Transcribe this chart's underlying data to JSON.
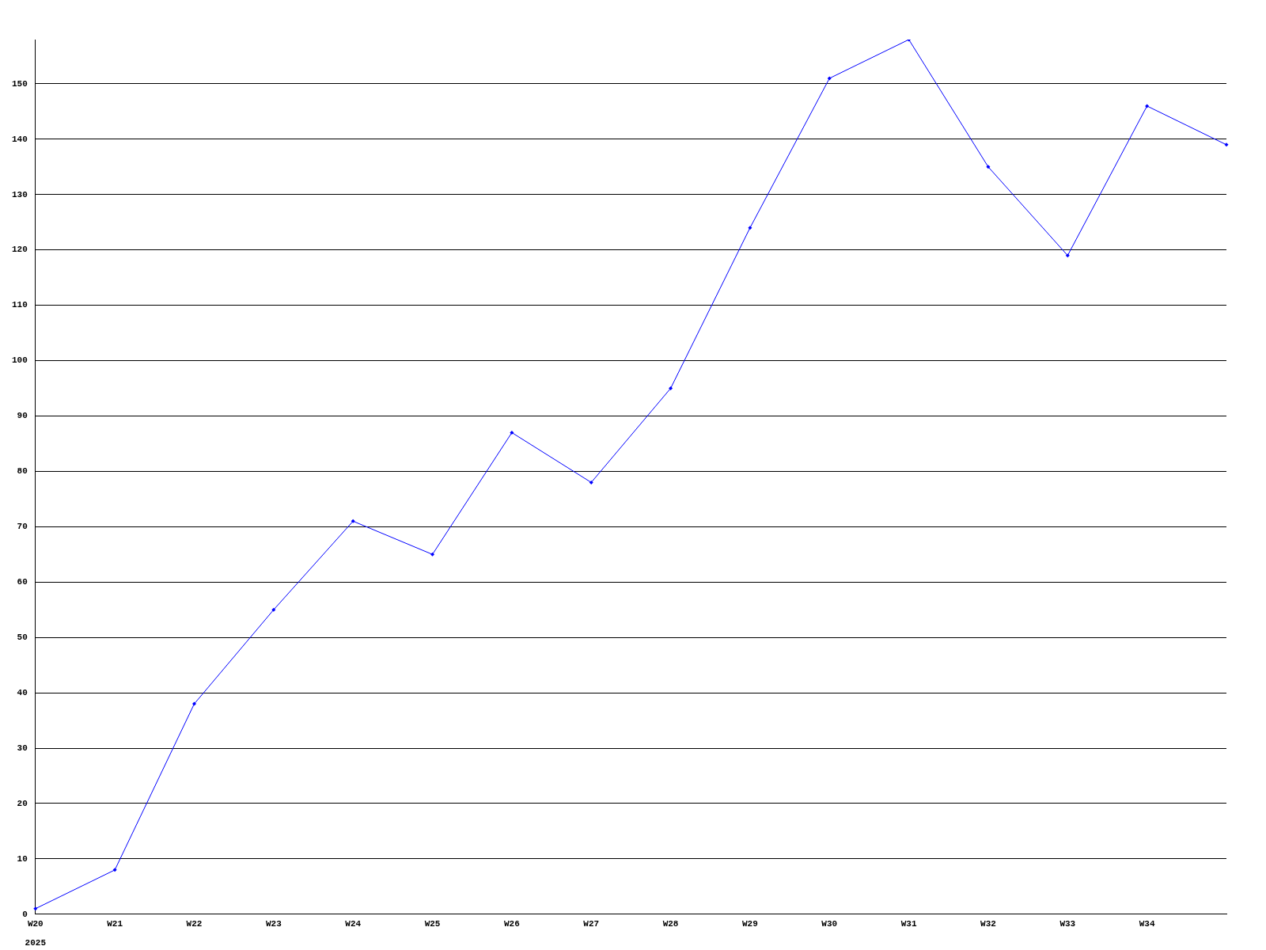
{
  "chart_data": {
    "type": "line",
    "categories": [
      "W20",
      "W21",
      "W22",
      "W23",
      "W24",
      "W25",
      "W26",
      "W27",
      "W28",
      "W29",
      "W30",
      "W31",
      "W32",
      "W33",
      "W34",
      null
    ],
    "series": [
      {
        "color": "#0000ff",
        "values": [
          1,
          8,
          38,
          55,
          71,
          65,
          87,
          78,
          95,
          124,
          151,
          158,
          135,
          119,
          146,
          139
        ]
      }
    ],
    "annotations": [
      "2025"
    ],
    "ylim": [
      0,
      158
    ],
    "yticks": [
      0,
      10,
      20,
      30,
      40,
      50,
      60,
      70,
      80,
      90,
      100,
      110,
      120,
      130,
      140,
      150
    ],
    "grid": "y",
    "legend": false,
    "marker": "diamond",
    "line_style": "solid"
  }
}
